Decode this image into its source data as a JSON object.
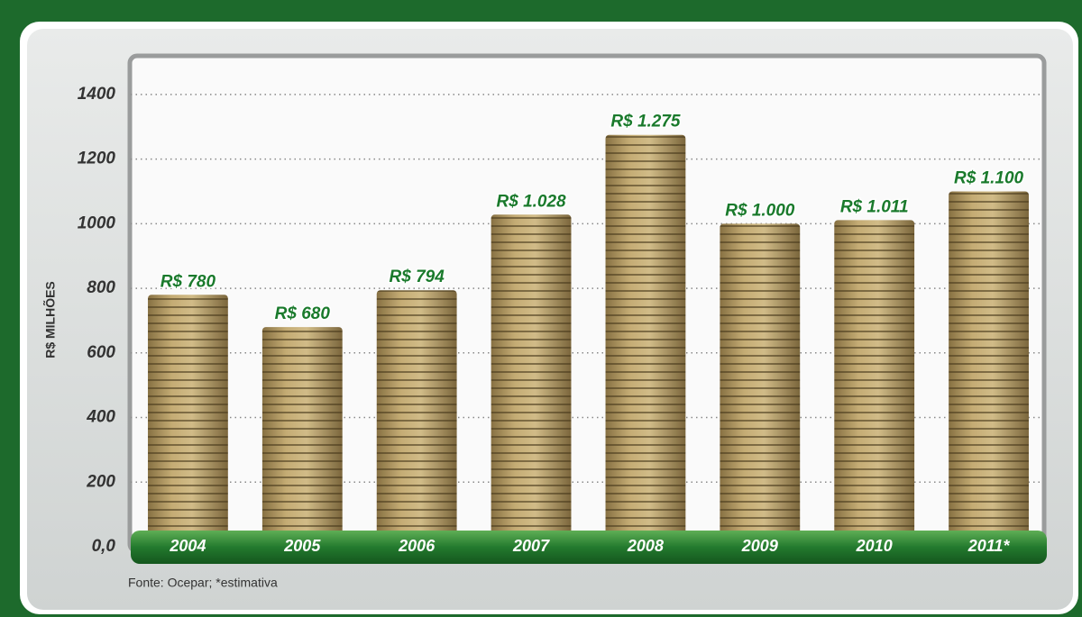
{
  "chart_data": {
    "type": "bar",
    "y_label": "R$ MILHÕES",
    "source": "Fonte: Ocepar; *estimativa",
    "categories": [
      "2004",
      "2005",
      "2006",
      "2007",
      "2008",
      "2009",
      "2010",
      "2011*"
    ],
    "values": [
      780,
      680,
      794,
      1028,
      1275,
      1000,
      1011,
      1100
    ],
    "value_labels": [
      "R$ 780",
      "R$ 680",
      "R$ 794",
      "R$ 1.028",
      "R$ 1.275",
      "R$ 1.000",
      "R$ 1.011",
      "R$ 1.100"
    ],
    "color": "#b49a60",
    "ylim": [
      0,
      1500
    ],
    "yticks": [
      {
        "value": 0,
        "label": "0,0"
      },
      200,
      400,
      600,
      800,
      1000,
      1200,
      1400
    ],
    "grid": true
  }
}
